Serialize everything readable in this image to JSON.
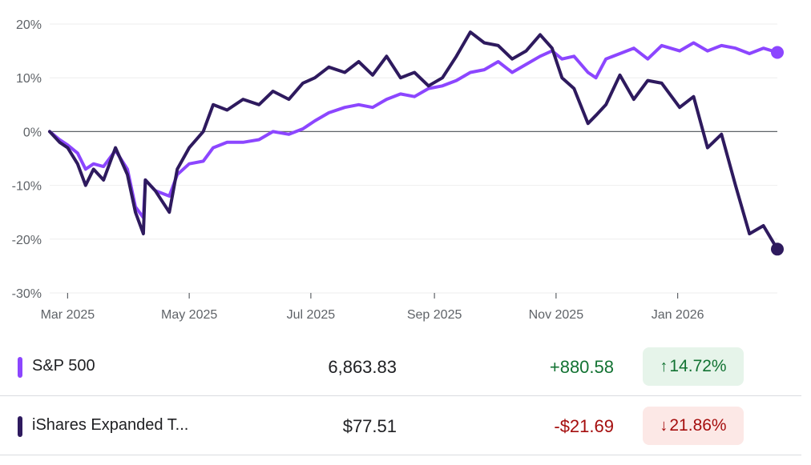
{
  "chart_data": {
    "type": "line",
    "y_ticks": [
      "20%",
      "10%",
      "0%",
      "-10%",
      "-20%",
      "-30%"
    ],
    "y_tick_values": [
      20,
      10,
      0,
      -10,
      -20,
      -30
    ],
    "ylim": [
      -30,
      20
    ],
    "x_ticks": [
      "Mar 2025",
      "May 2025",
      "Jul 2025",
      "Sep 2025",
      "Nov 2025",
      "Jan 2026"
    ],
    "x_tick_dates": [
      "2025-03-01",
      "2025-05-01",
      "2025-07-01",
      "2025-09-01",
      "2025-11-01",
      "2026-01-01"
    ],
    "xlim": [
      "2025-02-20",
      "2026-02-20"
    ],
    "series": [
      {
        "name": "S&P 500",
        "color": "#8c46ff",
        "points": [
          [
            "2025-02-20",
            0
          ],
          [
            "2025-02-25",
            -1.5
          ],
          [
            "2025-03-01",
            -2.5
          ],
          [
            "2025-03-06",
            -4
          ],
          [
            "2025-03-10",
            -7
          ],
          [
            "2025-03-14",
            -6
          ],
          [
            "2025-03-19",
            -6.5
          ],
          [
            "2025-03-25",
            -3.5
          ],
          [
            "2025-03-31",
            -7
          ],
          [
            "2025-04-04",
            -14
          ],
          [
            "2025-04-08",
            -16
          ],
          [
            "2025-04-09",
            -9
          ],
          [
            "2025-04-14",
            -11
          ],
          [
            "2025-04-21",
            -12
          ],
          [
            "2025-04-25",
            -8
          ],
          [
            "2025-05-01",
            -6
          ],
          [
            "2025-05-08",
            -5.5
          ],
          [
            "2025-05-13",
            -3
          ],
          [
            "2025-05-20",
            -2
          ],
          [
            "2025-05-28",
            -2
          ],
          [
            "2025-06-05",
            -1.5
          ],
          [
            "2025-06-12",
            0
          ],
          [
            "2025-06-20",
            -0.5
          ],
          [
            "2025-06-27",
            0.5
          ],
          [
            "2025-07-03",
            2
          ],
          [
            "2025-07-10",
            3.5
          ],
          [
            "2025-07-18",
            4.5
          ],
          [
            "2025-07-25",
            5
          ],
          [
            "2025-08-01",
            4.5
          ],
          [
            "2025-08-08",
            6
          ],
          [
            "2025-08-15",
            7
          ],
          [
            "2025-08-22",
            6.5
          ],
          [
            "2025-08-29",
            8
          ],
          [
            "2025-09-05",
            8.5
          ],
          [
            "2025-09-12",
            9.5
          ],
          [
            "2025-09-19",
            11
          ],
          [
            "2025-09-26",
            11.5
          ],
          [
            "2025-10-03",
            13
          ],
          [
            "2025-10-10",
            11
          ],
          [
            "2025-10-17",
            12.5
          ],
          [
            "2025-10-24",
            14
          ],
          [
            "2025-10-30",
            15
          ],
          [
            "2025-11-04",
            13.5
          ],
          [
            "2025-11-10",
            14
          ],
          [
            "2025-11-17",
            11
          ],
          [
            "2025-11-21",
            10
          ],
          [
            "2025-11-26",
            13.5
          ],
          [
            "2025-12-03",
            14.5
          ],
          [
            "2025-12-10",
            15.5
          ],
          [
            "2025-12-17",
            13.5
          ],
          [
            "2025-12-24",
            16
          ],
          [
            "2026-01-02",
            15
          ],
          [
            "2026-01-09",
            16.5
          ],
          [
            "2026-01-16",
            15
          ],
          [
            "2026-01-23",
            16
          ],
          [
            "2026-01-30",
            15.5
          ],
          [
            "2026-02-06",
            14.5
          ],
          [
            "2026-02-13",
            15.5
          ],
          [
            "2026-02-20",
            14.72
          ]
        ]
      },
      {
        "name": "iShares Expanded T...",
        "color": "#2e1a5e",
        "points": [
          [
            "2025-02-20",
            0
          ],
          [
            "2025-02-25",
            -2
          ],
          [
            "2025-03-01",
            -3
          ],
          [
            "2025-03-06",
            -6
          ],
          [
            "2025-03-10",
            -10
          ],
          [
            "2025-03-14",
            -7
          ],
          [
            "2025-03-19",
            -9
          ],
          [
            "2025-03-25",
            -3
          ],
          [
            "2025-03-31",
            -8
          ],
          [
            "2025-04-04",
            -15
          ],
          [
            "2025-04-08",
            -19
          ],
          [
            "2025-04-09",
            -9
          ],
          [
            "2025-04-14",
            -11
          ],
          [
            "2025-04-21",
            -15
          ],
          [
            "2025-04-25",
            -7
          ],
          [
            "2025-05-01",
            -3
          ],
          [
            "2025-05-08",
            0
          ],
          [
            "2025-05-13",
            5
          ],
          [
            "2025-05-20",
            4
          ],
          [
            "2025-05-28",
            6
          ],
          [
            "2025-06-05",
            5
          ],
          [
            "2025-06-12",
            7.5
          ],
          [
            "2025-06-20",
            6
          ],
          [
            "2025-06-27",
            9
          ],
          [
            "2025-07-03",
            10
          ],
          [
            "2025-07-10",
            12
          ],
          [
            "2025-07-18",
            11
          ],
          [
            "2025-07-25",
            13
          ],
          [
            "2025-08-01",
            10.5
          ],
          [
            "2025-08-08",
            14
          ],
          [
            "2025-08-15",
            10
          ],
          [
            "2025-08-22",
            11
          ],
          [
            "2025-08-29",
            8.5
          ],
          [
            "2025-09-05",
            10
          ],
          [
            "2025-09-12",
            14
          ],
          [
            "2025-09-19",
            18.5
          ],
          [
            "2025-09-26",
            16.5
          ],
          [
            "2025-10-03",
            16
          ],
          [
            "2025-10-10",
            13.5
          ],
          [
            "2025-10-17",
            15
          ],
          [
            "2025-10-24",
            18
          ],
          [
            "2025-10-30",
            15.5
          ],
          [
            "2025-11-04",
            10
          ],
          [
            "2025-11-10",
            8
          ],
          [
            "2025-11-17",
            1.5
          ],
          [
            "2025-11-21",
            3
          ],
          [
            "2025-11-26",
            5
          ],
          [
            "2025-12-03",
            10.5
          ],
          [
            "2025-12-10",
            6
          ],
          [
            "2025-12-17",
            9.5
          ],
          [
            "2025-12-24",
            9
          ],
          [
            "2026-01-02",
            4.5
          ],
          [
            "2026-01-09",
            6.5
          ],
          [
            "2026-01-16",
            -3
          ],
          [
            "2026-01-23",
            -0.5
          ],
          [
            "2026-01-30",
            -10
          ],
          [
            "2026-02-06",
            -19
          ],
          [
            "2026-02-13",
            -17.5
          ],
          [
            "2026-02-20",
            -21.86
          ]
        ]
      }
    ]
  },
  "legend": {
    "rows": [
      {
        "name": "S&P 500",
        "price": "6,863.83",
        "change": "+880.58",
        "percent": "14.72%",
        "arrow": "↑",
        "swatch_color": "#8c46ff",
        "change_color": "#137333",
        "badge_bg": "#e6f4ea",
        "badge_color": "#137333"
      },
      {
        "name": "iShares Expanded T...",
        "price": "$77.51",
        "change": "-$21.69",
        "percent": "21.86%",
        "arrow": "↓",
        "swatch_color": "#2e1a5e",
        "change_color": "#a50e0e",
        "badge_bg": "#fce8e6",
        "badge_color": "#a50e0e"
      }
    ]
  }
}
